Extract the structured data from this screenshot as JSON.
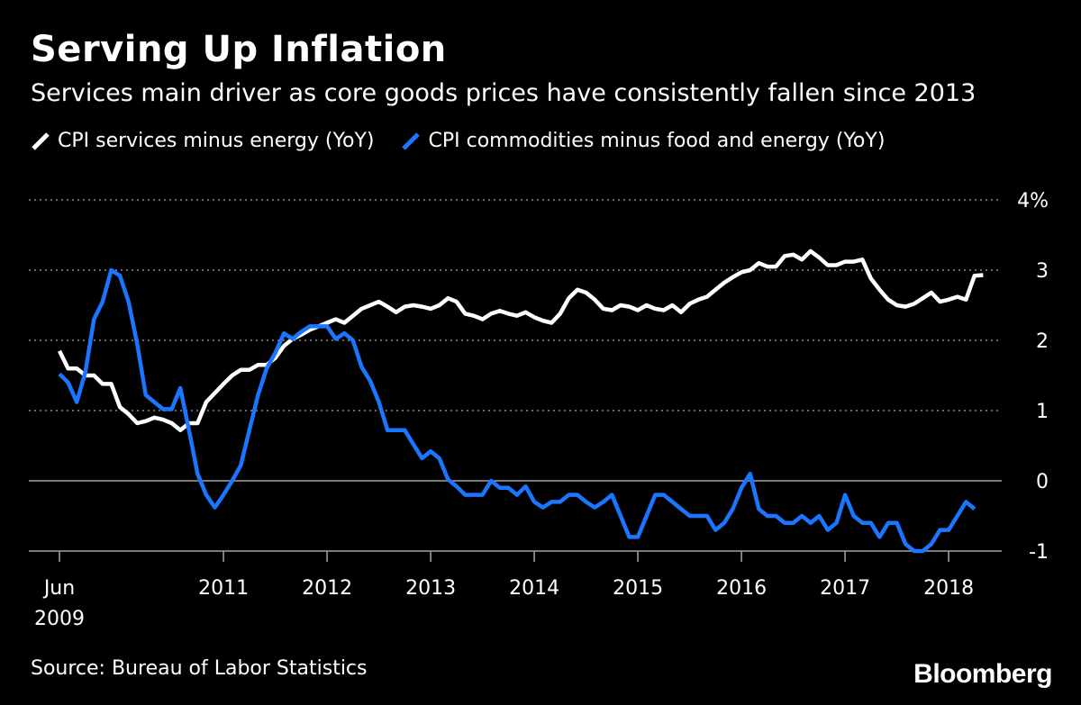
{
  "colors": {
    "background": "#000000",
    "text": "#ffffff",
    "services_line": "#ffffff",
    "commodities_line": "#1a75ff",
    "grid": "#8c8c8c",
    "zero_line": "#8c8c8c"
  },
  "brand": "Bloomberg",
  "source": "Source: Bureau of Labor Statistics",
  "chart_data": {
    "type": "line",
    "title": "Serving Up Inflation",
    "subtitle": "Services main driver as core goods prices have consistently fallen since 2013",
    "xlabel": "",
    "ylabel": "",
    "x_range": [
      "2009-06",
      "2018-05"
    ],
    "ylim": [
      -1,
      4
    ],
    "y_ticks": [
      {
        "value": 4,
        "label": "4%"
      },
      {
        "value": 3,
        "label": "3"
      },
      {
        "value": 2,
        "label": "2"
      },
      {
        "value": 1,
        "label": "1"
      },
      {
        "value": 0,
        "label": "0"
      },
      {
        "value": -1,
        "label": "-1"
      }
    ],
    "x_ticks": [
      {
        "date": "2009-06",
        "label": "Jun",
        "label2": "2009"
      },
      {
        "date": "2011-01",
        "label": "2011"
      },
      {
        "date": "2012-01",
        "label": "2012"
      },
      {
        "date": "2013-01",
        "label": "2013"
      },
      {
        "date": "2014-01",
        "label": "2014"
      },
      {
        "date": "2015-01",
        "label": "2015"
      },
      {
        "date": "2016-01",
        "label": "2016"
      },
      {
        "date": "2017-01",
        "label": "2017"
      },
      {
        "date": "2018-01",
        "label": "2018"
      }
    ],
    "grid": true,
    "legend_position": "top",
    "series": [
      {
        "name": "CPI services minus energy (YoY)",
        "color": "#ffffff",
        "points": [
          [
            "2009-06",
            1.85
          ],
          [
            "2009-07",
            1.6
          ],
          [
            "2009-08",
            1.6
          ],
          [
            "2009-09",
            1.5
          ],
          [
            "2009-10",
            1.5
          ],
          [
            "2009-11",
            1.38
          ],
          [
            "2009-12",
            1.38
          ],
          [
            "2010-01",
            1.05
          ],
          [
            "2010-02",
            0.95
          ],
          [
            "2010-03",
            0.82
          ],
          [
            "2010-04",
            0.85
          ],
          [
            "2010-05",
            0.9
          ],
          [
            "2010-06",
            0.87
          ],
          [
            "2010-07",
            0.82
          ],
          [
            "2010-08",
            0.72
          ],
          [
            "2010-09",
            0.82
          ],
          [
            "2010-10",
            0.82
          ],
          [
            "2010-11",
            1.12
          ],
          [
            "2010-12",
            1.25
          ],
          [
            "2011-01",
            1.38
          ],
          [
            "2011-02",
            1.5
          ],
          [
            "2011-03",
            1.58
          ],
          [
            "2011-04",
            1.58
          ],
          [
            "2011-05",
            1.65
          ],
          [
            "2011-06",
            1.65
          ],
          [
            "2011-07",
            1.75
          ],
          [
            "2011-08",
            1.92
          ],
          [
            "2011-09",
            2.02
          ],
          [
            "2011-10",
            2.08
          ],
          [
            "2011-11",
            2.15
          ],
          [
            "2011-12",
            2.2
          ],
          [
            "2012-01",
            2.25
          ],
          [
            "2012-02",
            2.3
          ],
          [
            "2012-03",
            2.25
          ],
          [
            "2012-04",
            2.35
          ],
          [
            "2012-05",
            2.45
          ],
          [
            "2012-06",
            2.5
          ],
          [
            "2012-07",
            2.55
          ],
          [
            "2012-08",
            2.48
          ],
          [
            "2012-09",
            2.4
          ],
          [
            "2012-10",
            2.48
          ],
          [
            "2012-11",
            2.5
          ],
          [
            "2012-12",
            2.48
          ],
          [
            "2013-01",
            2.45
          ],
          [
            "2013-02",
            2.5
          ],
          [
            "2013-03",
            2.6
          ],
          [
            "2013-04",
            2.55
          ],
          [
            "2013-05",
            2.38
          ],
          [
            "2013-06",
            2.35
          ],
          [
            "2013-07",
            2.3
          ],
          [
            "2013-08",
            2.38
          ],
          [
            "2013-09",
            2.42
          ],
          [
            "2013-10",
            2.38
          ],
          [
            "2013-11",
            2.35
          ],
          [
            "2013-12",
            2.4
          ],
          [
            "2014-01",
            2.33
          ],
          [
            "2014-02",
            2.28
          ],
          [
            "2014-03",
            2.25
          ],
          [
            "2014-04",
            2.38
          ],
          [
            "2014-05",
            2.6
          ],
          [
            "2014-06",
            2.72
          ],
          [
            "2014-07",
            2.68
          ],
          [
            "2014-08",
            2.58
          ],
          [
            "2014-09",
            2.45
          ],
          [
            "2014-10",
            2.43
          ],
          [
            "2014-11",
            2.5
          ],
          [
            "2014-12",
            2.48
          ],
          [
            "2015-01",
            2.43
          ],
          [
            "2015-02",
            2.5
          ],
          [
            "2015-03",
            2.45
          ],
          [
            "2015-04",
            2.43
          ],
          [
            "2015-05",
            2.5
          ],
          [
            "2015-06",
            2.4
          ],
          [
            "2015-07",
            2.52
          ],
          [
            "2015-08",
            2.58
          ],
          [
            "2015-09",
            2.62
          ],
          [
            "2015-10",
            2.72
          ],
          [
            "2015-11",
            2.82
          ],
          [
            "2015-12",
            2.9
          ],
          [
            "2016-01",
            2.97
          ],
          [
            "2016-02",
            3.0
          ],
          [
            "2016-03",
            3.1
          ],
          [
            "2016-04",
            3.05
          ],
          [
            "2016-05",
            3.05
          ],
          [
            "2016-06",
            3.2
          ],
          [
            "2016-07",
            3.22
          ],
          [
            "2016-08",
            3.15
          ],
          [
            "2016-09",
            3.27
          ],
          [
            "2016-10",
            3.18
          ],
          [
            "2016-11",
            3.07
          ],
          [
            "2016-12",
            3.07
          ],
          [
            "2017-01",
            3.12
          ],
          [
            "2017-02",
            3.12
          ],
          [
            "2017-03",
            3.15
          ],
          [
            "2017-04",
            2.88
          ],
          [
            "2017-05",
            2.72
          ],
          [
            "2017-06",
            2.58
          ],
          [
            "2017-07",
            2.5
          ],
          [
            "2017-08",
            2.48
          ],
          [
            "2017-09",
            2.52
          ],
          [
            "2017-10",
            2.6
          ],
          [
            "2017-11",
            2.68
          ],
          [
            "2017-12",
            2.55
          ],
          [
            "2018-01",
            2.58
          ],
          [
            "2018-02",
            2.62
          ],
          [
            "2018-03",
            2.58
          ],
          [
            "2018-04",
            2.92
          ],
          [
            "2018-05",
            2.93
          ]
        ]
      },
      {
        "name": "CPI commodities minus food and energy (YoY)",
        "color": "#1a75ff",
        "points": [
          [
            "2009-06",
            1.52
          ],
          [
            "2009-07",
            1.4
          ],
          [
            "2009-08",
            1.12
          ],
          [
            "2009-09",
            1.55
          ],
          [
            "2009-10",
            2.3
          ],
          [
            "2009-11",
            2.55
          ],
          [
            "2009-12",
            3.0
          ],
          [
            "2010-01",
            2.92
          ],
          [
            "2010-02",
            2.55
          ],
          [
            "2010-03",
            1.95
          ],
          [
            "2010-04",
            1.22
          ],
          [
            "2010-05",
            1.12
          ],
          [
            "2010-06",
            1.02
          ],
          [
            "2010-07",
            1.02
          ],
          [
            "2010-08",
            1.32
          ],
          [
            "2010-09",
            0.72
          ],
          [
            "2010-10",
            0.1
          ],
          [
            "2010-11",
            -0.2
          ],
          [
            "2010-12",
            -0.38
          ],
          [
            "2011-01",
            -0.2
          ],
          [
            "2011-02",
            0.0
          ],
          [
            "2011-03",
            0.22
          ],
          [
            "2011-04",
            0.72
          ],
          [
            "2011-05",
            1.22
          ],
          [
            "2011-06",
            1.6
          ],
          [
            "2011-07",
            1.82
          ],
          [
            "2011-08",
            2.1
          ],
          [
            "2011-09",
            2.02
          ],
          [
            "2011-10",
            2.12
          ],
          [
            "2011-11",
            2.2
          ],
          [
            "2011-12",
            2.2
          ],
          [
            "2012-01",
            2.2
          ],
          [
            "2012-02",
            2.02
          ],
          [
            "2012-03",
            2.1
          ],
          [
            "2012-04",
            2.0
          ],
          [
            "2012-05",
            1.62
          ],
          [
            "2012-06",
            1.42
          ],
          [
            "2012-07",
            1.12
          ],
          [
            "2012-08",
            0.72
          ],
          [
            "2012-09",
            0.72
          ],
          [
            "2012-10",
            0.72
          ],
          [
            "2012-11",
            0.52
          ],
          [
            "2012-12",
            0.32
          ],
          [
            "2013-01",
            0.42
          ],
          [
            "2013-02",
            0.32
          ],
          [
            "2013-03",
            0.02
          ],
          [
            "2013-04",
            -0.08
          ],
          [
            "2013-05",
            -0.2
          ],
          [
            "2013-06",
            -0.2
          ],
          [
            "2013-07",
            -0.2
          ],
          [
            "2013-08",
            0.0
          ],
          [
            "2013-09",
            -0.1
          ],
          [
            "2013-10",
            -0.1
          ],
          [
            "2013-11",
            -0.2
          ],
          [
            "2013-12",
            -0.08
          ],
          [
            "2014-01",
            -0.3
          ],
          [
            "2014-02",
            -0.38
          ],
          [
            "2014-03",
            -0.3
          ],
          [
            "2014-04",
            -0.3
          ],
          [
            "2014-05",
            -0.2
          ],
          [
            "2014-06",
            -0.2
          ],
          [
            "2014-07",
            -0.3
          ],
          [
            "2014-08",
            -0.38
          ],
          [
            "2014-09",
            -0.3
          ],
          [
            "2014-10",
            -0.2
          ],
          [
            "2014-11",
            -0.5
          ],
          [
            "2014-12",
            -0.8
          ],
          [
            "2015-01",
            -0.8
          ],
          [
            "2015-02",
            -0.5
          ],
          [
            "2015-03",
            -0.2
          ],
          [
            "2015-04",
            -0.2
          ],
          [
            "2015-05",
            -0.3
          ],
          [
            "2015-06",
            -0.4
          ],
          [
            "2015-07",
            -0.5
          ],
          [
            "2015-08",
            -0.5
          ],
          [
            "2015-09",
            -0.5
          ],
          [
            "2015-10",
            -0.7
          ],
          [
            "2015-11",
            -0.6
          ],
          [
            "2015-12",
            -0.4
          ],
          [
            "2016-01",
            -0.1
          ],
          [
            "2016-02",
            0.1
          ],
          [
            "2016-03",
            -0.4
          ],
          [
            "2016-04",
            -0.5
          ],
          [
            "2016-05",
            -0.5
          ],
          [
            "2016-06",
            -0.6
          ],
          [
            "2016-07",
            -0.6
          ],
          [
            "2016-08",
            -0.5
          ],
          [
            "2016-09",
            -0.6
          ],
          [
            "2016-10",
            -0.5
          ],
          [
            "2016-11",
            -0.7
          ],
          [
            "2016-12",
            -0.6
          ],
          [
            "2017-01",
            -0.2
          ],
          [
            "2017-02",
            -0.5
          ],
          [
            "2017-03",
            -0.6
          ],
          [
            "2017-04",
            -0.6
          ],
          [
            "2017-05",
            -0.8
          ],
          [
            "2017-06",
            -0.6
          ],
          [
            "2017-07",
            -0.6
          ],
          [
            "2017-08",
            -0.9
          ],
          [
            "2017-09",
            -1.0
          ],
          [
            "2017-10",
            -1.0
          ],
          [
            "2017-11",
            -0.9
          ],
          [
            "2017-12",
            -0.7
          ],
          [
            "2018-01",
            -0.7
          ],
          [
            "2018-02",
            -0.5
          ],
          [
            "2018-03",
            -0.3
          ],
          [
            "2018-04",
            -0.4
          ]
        ]
      }
    ]
  }
}
